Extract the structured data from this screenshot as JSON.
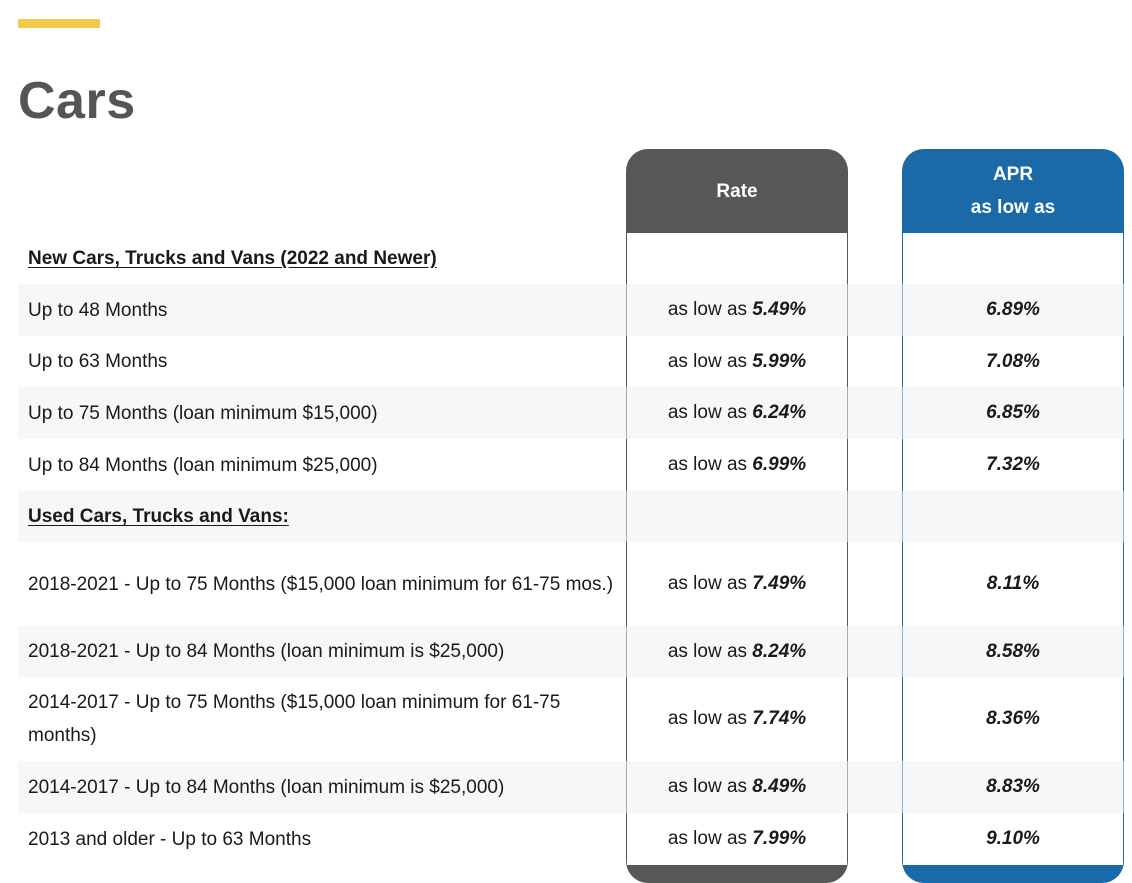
{
  "page": {
    "title": "Cars"
  },
  "columns": {
    "rate_header": "Rate",
    "apr_header_line1": "APR",
    "apr_header_line2": "as low as"
  },
  "colors": {
    "accent": "#f2c94c",
    "rate_column": "#575757",
    "apr_column": "#1a69a8",
    "title": "#555555"
  },
  "sections": [
    {
      "title": "New Cars, Trucks and Vans (2022 and Newer)",
      "rows": [
        {
          "term": "Up to 48 Months",
          "rate_prefix": "as low as",
          "rate": "5.49%",
          "apr": "6.89%"
        },
        {
          "term": "Up to 63 Months",
          "rate_prefix": "as low as",
          "rate": "5.99%",
          "apr": "7.08%"
        },
        {
          "term": "Up to 75 Months (loan minimum $15,000)",
          "rate_prefix": "as low as",
          "rate": "6.24%",
          "apr": "6.85%"
        },
        {
          "term": "Up to 84 Months (loan minimum $25,000)",
          "rate_prefix": "as low as",
          "rate": "6.99%",
          "apr": "7.32%"
        }
      ]
    },
    {
      "title": "Used Cars, Trucks and Vans:",
      "rows": [
        {
          "term": "2018-2021 - Up to 75 Months ($15,000 loan minimum for 61-75 mos.)",
          "rate_prefix": "as low as",
          "rate": "7.49%",
          "apr": "8.11%"
        },
        {
          "term": "2018-2021 - Up to 84 Months (loan minimum is $25,000)",
          "rate_prefix": "as low as",
          "rate": "8.24%",
          "apr": "8.58%"
        },
        {
          "term": "2014-2017 - Up to 75 Months ($15,000 loan minimum for 61-75 months)",
          "rate_prefix": "as low as",
          "rate": "7.74%",
          "apr": "8.36%"
        },
        {
          "term": "2014-2017 - Up to 84 Months (loan minimum is $25,000)",
          "rate_prefix": "as low as",
          "rate": "8.49%",
          "apr": "8.83%"
        },
        {
          "term": "2013 and older - Up to 63 Months",
          "rate_prefix": "as low as",
          "rate": "7.99%",
          "apr": "9.10%"
        }
      ]
    }
  ]
}
